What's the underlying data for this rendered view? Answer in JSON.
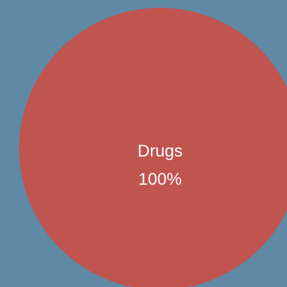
{
  "background_color": "#5f89a4",
  "chart_data": {
    "type": "pie",
    "title": "",
    "slices": [
      {
        "label": "Drugs",
        "value": 100,
        "display": "100%",
        "color": "#c0544f"
      }
    ]
  }
}
